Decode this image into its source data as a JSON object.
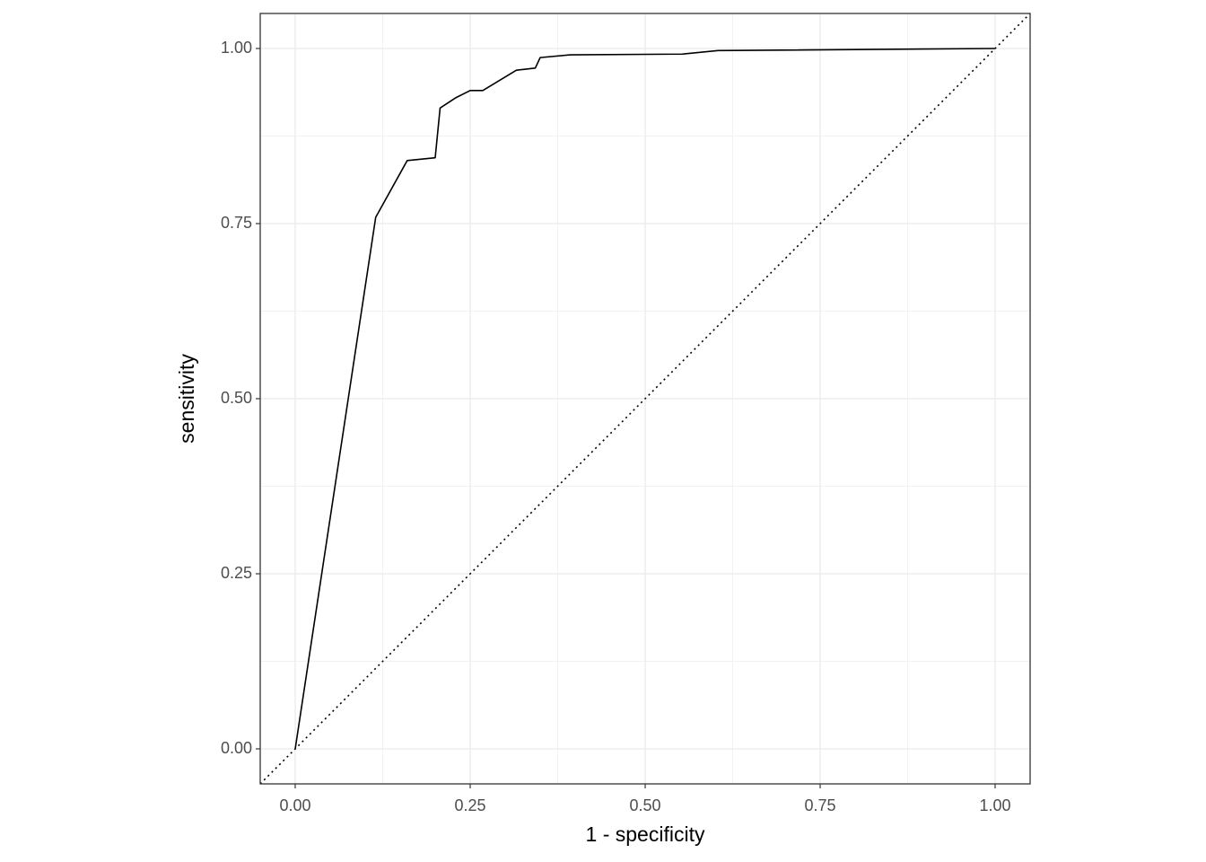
{
  "chart_data": {
    "type": "line",
    "x_label": "1 - specificity",
    "y_label": "sensitivity",
    "series": [
      {
        "color": "#000000",
        "x": [
          0,
          0.115,
          0.16,
          0.2,
          0.207,
          0.23,
          0.25,
          0.268,
          0.316,
          0.343,
          0.35,
          0.393,
          0.553,
          0.604,
          1
        ],
        "values": [
          0,
          0.759,
          0.84,
          0.844,
          0.915,
          0.93,
          0.94,
          0.94,
          0.969,
          0.972,
          0.987,
          0.991,
          0.992,
          0.997,
          1
        ]
      }
    ],
    "diagonal": true,
    "xlim": [
      -0.05,
      1.05
    ],
    "ylim": [
      -0.05,
      1.05
    ],
    "xticks": [
      {
        "value": 0,
        "label": "0.00"
      },
      {
        "value": 0.25,
        "label": "0.25"
      },
      {
        "value": 0.5,
        "label": "0.50"
      },
      {
        "value": 0.75,
        "label": "0.75"
      },
      {
        "value": 1,
        "label": "1.00"
      }
    ],
    "yticks": [
      {
        "value": 0,
        "label": "0.00"
      },
      {
        "value": 0.25,
        "label": "0.25"
      },
      {
        "value": 0.5,
        "label": "0.50"
      },
      {
        "value": 0.75,
        "label": "0.75"
      },
      {
        "value": 1,
        "label": "1.00"
      }
    ],
    "grid": true
  }
}
